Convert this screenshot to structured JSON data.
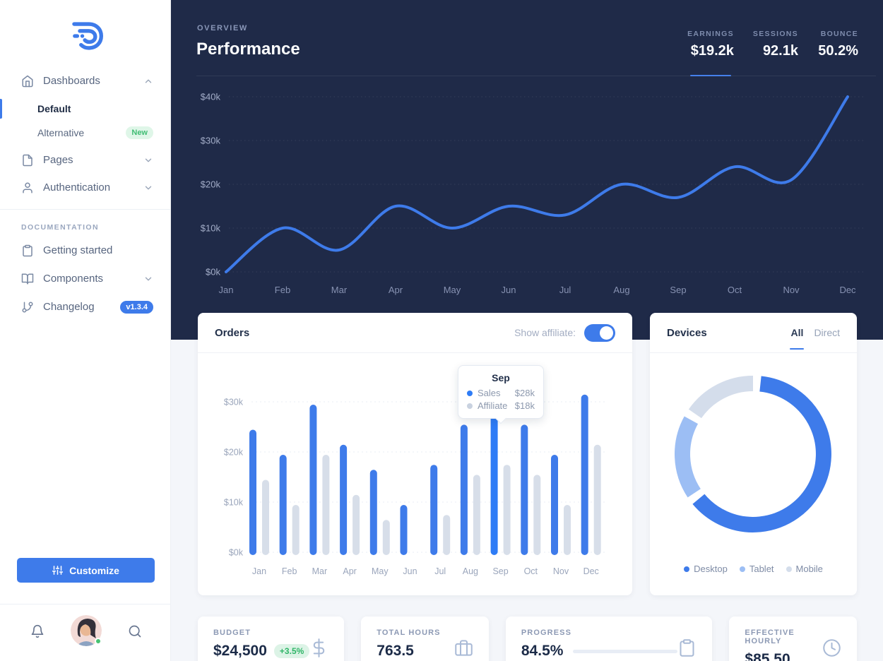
{
  "colors": {
    "primary_blue": "#3E7BEA",
    "highlight_blue": "#2E7CF6",
    "hero_navy": "#1F2A48",
    "page_background": "#F4F6FA",
    "bar_affiliate_grey": "#D7DEE9",
    "donut_tablet_blue": "#9CBEF4",
    "donut_mobile_grey": "#D4DDEB",
    "success_green": "#41BD74",
    "success_green_bg": "#DFF6E8"
  },
  "icons": {
    "logo": "spark-swirl-logo",
    "dashboards": "home-icon",
    "pages": "file-icon",
    "authentication": "user-icon",
    "getting_started": "clipboard-icon",
    "components": "book-open-icon",
    "changelog": "git-branch-icon",
    "customize": "sliders-icon",
    "footer": [
      "bell-icon",
      "avatar",
      "search-icon"
    ],
    "stat_cards": [
      "dollar-sign-icon",
      "briefcase-icon",
      "clipboard-icon",
      "clock-icon"
    ]
  },
  "sidebar": {
    "nav": {
      "dashboards": {
        "label": "Dashboards",
        "expanded": true
      },
      "default": {
        "label": "Default",
        "active": true
      },
      "alternative": {
        "label": "Alternative",
        "badge": "New"
      },
      "pages": {
        "label": "Pages",
        "expanded": false
      },
      "authentication": {
        "label": "Authentication",
        "expanded": false
      }
    },
    "section_label": "DOCUMENTATION",
    "docs": {
      "getting_started": {
        "label": "Getting started"
      },
      "components": {
        "label": "Components",
        "expanded": false
      },
      "changelog": {
        "label": "Changelog",
        "badge": "v1.3.4"
      }
    },
    "customize_label": "Customize"
  },
  "hero": {
    "eyebrow": "OVERVIEW",
    "title": "Performance",
    "stats": [
      {
        "label": "EARNINGS",
        "value": "$19.2k",
        "active": true
      },
      {
        "label": "SESSIONS",
        "value": "92.1k",
        "active": false
      },
      {
        "label": "BOUNCE",
        "value": "50.2%",
        "active": false
      }
    ]
  },
  "orders_card": {
    "title": "Orders",
    "toggle_label": "Show affiliate:",
    "toggle_on": true,
    "tooltip": {
      "month": "Sep",
      "rows": [
        {
          "series": "Sales",
          "value": "$28k"
        },
        {
          "series": "Affiliate",
          "value": "$18k"
        }
      ]
    }
  },
  "devices_card": {
    "title": "Devices",
    "tabs": [
      {
        "label": "All",
        "active": true
      },
      {
        "label": "Direct",
        "active": false
      }
    ],
    "legend": [
      {
        "label": "Desktop"
      },
      {
        "label": "Tablet"
      },
      {
        "label": "Mobile"
      }
    ]
  },
  "stat_cards": [
    {
      "label": "BUDGET",
      "value": "$24,500",
      "badge": "+3.5%",
      "icon": "dollar-sign-icon"
    },
    {
      "label": "TOTAL HOURS",
      "value": "763.5",
      "icon": "briefcase-icon"
    },
    {
      "label": "PROGRESS",
      "value": "84.5%",
      "icon": "clipboard-icon",
      "progress_percent": 84.5
    },
    {
      "label": "EFFECTIVE HOURLY",
      "value": "$85.50",
      "icon": "clock-icon"
    }
  ],
  "chart_data": [
    {
      "id": "performance-line",
      "type": "line",
      "title": "Performance (monthly earnings)",
      "x": [
        "Jan",
        "Feb",
        "Mar",
        "Apr",
        "May",
        "Jun",
        "Jul",
        "Aug",
        "Sep",
        "Oct",
        "Nov",
        "Dec"
      ],
      "series": [
        {
          "name": "Earnings",
          "color": "#3E7BEA",
          "values": [
            0,
            10,
            5,
            15,
            10,
            15,
            13,
            20,
            17,
            24,
            21,
            40
          ]
        }
      ],
      "unit": "$k",
      "ylim": [
        0,
        40
      ],
      "y_ticks": [
        "$0k",
        "$10k",
        "$20k",
        "$30k",
        "$40k"
      ],
      "grid": "dotted-horizontal",
      "legend_position": "none"
    },
    {
      "id": "orders-bars",
      "type": "bar",
      "title": "Orders",
      "categories": [
        "Jan",
        "Feb",
        "Mar",
        "Apr",
        "May",
        "Jun",
        "Jul",
        "Aug",
        "Sep",
        "Oct",
        "Nov",
        "Dec"
      ],
      "series": [
        {
          "name": "Sales",
          "color": "#3E7BEA",
          "values": [
            25,
            20,
            30,
            22,
            17,
            10,
            18,
            26,
            28,
            26,
            20,
            32
          ]
        },
        {
          "name": "Affiliate",
          "color": "#D7DEE9",
          "values": [
            15,
            10,
            20,
            12,
            7,
            0,
            8,
            16,
            18,
            16,
            10,
            22
          ]
        }
      ],
      "unit": "$k",
      "ylim": [
        0,
        30
      ],
      "y_ticks": [
        "$0k",
        "$10k",
        "$20k",
        "$30k"
      ],
      "highlight_category": "Sep",
      "highlight_color": "#2E7CF6",
      "grid": "dotted-horizontal",
      "legend_position": "none"
    },
    {
      "id": "devices-donut",
      "type": "pie",
      "labels": [
        "Desktop",
        "Tablet",
        "Mobile"
      ],
      "values": [
        64,
        19,
        17
      ],
      "colors": [
        "#3E7BEA",
        "#9CBEF4",
        "#D4DDEB"
      ],
      "note": "donut ring, values are approximate % of circumference",
      "legend_position": "bottom"
    }
  ]
}
